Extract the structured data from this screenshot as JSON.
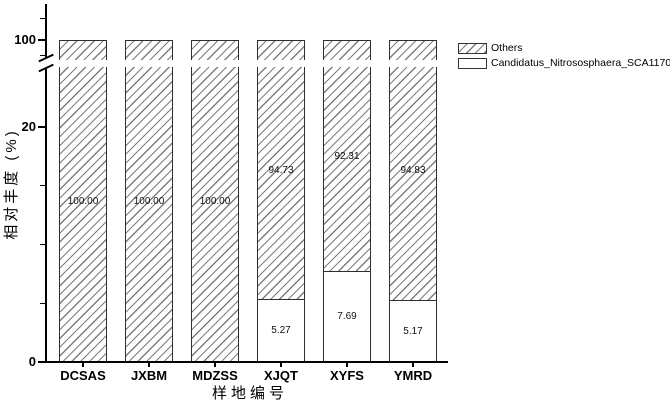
{
  "figure": {
    "xlabel": "样地编号",
    "ylabel": "相对丰度 (%)"
  },
  "legend": {
    "items": [
      {
        "label": "Others",
        "swatch": "hatched"
      },
      {
        "label": "Candidatus_Nitrososphaera_SCA1170",
        "swatch": "white"
      }
    ]
  },
  "chart_data": {
    "type": "bar",
    "stacked": true,
    "categories": [
      "DCSAS",
      "JXBM",
      "MDZSS",
      "XJQT",
      "XYFS",
      "YMRD"
    ],
    "series": [
      {
        "name": "Candidatus_Nitrososphaera_SCA1170",
        "fill": "white",
        "values": [
          0,
          0,
          0,
          5.27,
          7.69,
          5.17
        ],
        "labels": [
          "",
          "",
          "",
          "5.27",
          "7.69",
          "5.17"
        ]
      },
      {
        "name": "Others",
        "fill": "diagonal-hatch",
        "values": [
          100.0,
          100.0,
          100.0,
          94.73,
          92.31,
          94.83
        ],
        "labels": [
          "100.00",
          "100.00",
          "100.00",
          "94.73",
          "92.31",
          "94.83"
        ]
      }
    ],
    "title": "",
    "xlabel": "样地编号",
    "ylabel": "相对丰度 (%)",
    "y_axis": {
      "major_ticks": [
        "0",
        "20",
        "100"
      ],
      "minor_ticks": [
        5,
        10,
        15
      ],
      "axis_break": {
        "between": [
          26,
          97
        ]
      },
      "units": "%"
    },
    "grid": false,
    "legend_position": "outside-top-right"
  }
}
